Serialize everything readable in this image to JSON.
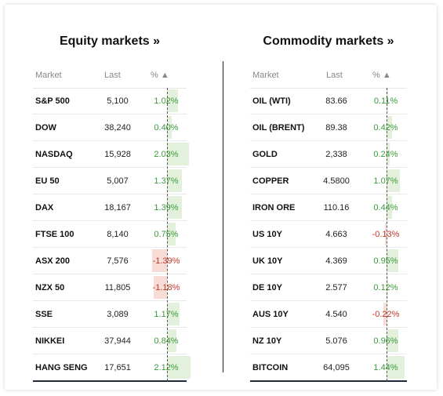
{
  "equity": {
    "title": "Equity markets »",
    "headers": {
      "market": "Market",
      "last": "Last",
      "pct": "% ▲"
    },
    "rows": [
      {
        "name": "S&P 500",
        "last": "5,100",
        "pct": "1.02%",
        "value": 1.02
      },
      {
        "name": "DOW",
        "last": "38,240",
        "pct": "0.40%",
        "value": 0.4
      },
      {
        "name": "NASDAQ",
        "last": "15,928",
        "pct": "2.03%",
        "value": 2.03
      },
      {
        "name": "EU 50",
        "last": "5,007",
        "pct": "1.37%",
        "value": 1.37
      },
      {
        "name": "DAX",
        "last": "18,167",
        "pct": "1.39%",
        "value": 1.39
      },
      {
        "name": "FTSE 100",
        "last": "8,140",
        "pct": "0.75%",
        "value": 0.75
      },
      {
        "name": "ASX 200",
        "last": "7,576",
        "pct": "-1.39%",
        "value": -1.39
      },
      {
        "name": "NZX 50",
        "last": "11,805",
        "pct": "-1.18%",
        "value": -1.18
      },
      {
        "name": "SSE",
        "last": "3,089",
        "pct": "1.17%",
        "value": 1.17
      },
      {
        "name": "NIKKEI",
        "last": "37,944",
        "pct": "0.84%",
        "value": 0.84
      },
      {
        "name": "HANG SENG",
        "last": "17,651",
        "pct": "2.12%",
        "value": 2.12
      }
    ]
  },
  "commodity": {
    "title": "Commodity markets »",
    "headers": {
      "market": "Market",
      "last": "Last",
      "pct": "% ▲"
    },
    "rows": [
      {
        "name": "OIL (WTI)",
        "last": "83.66",
        "pct": "0.11%",
        "value": 0.11
      },
      {
        "name": "OIL (BRENT)",
        "last": "89.38",
        "pct": "0.42%",
        "value": 0.42
      },
      {
        "name": "GOLD",
        "last": "2,338",
        "pct": "0.24%",
        "value": 0.24
      },
      {
        "name": "COPPER",
        "last": "4.5800",
        "pct": "1.07%",
        "value": 1.07
      },
      {
        "name": "IRON ORE",
        "last": "110.16",
        "pct": "0.44%",
        "value": 0.44
      },
      {
        "name": "US 10Y",
        "last": "4.663",
        "pct": "-0.13%",
        "value": -0.13
      },
      {
        "name": "UK 10Y",
        "last": "4.369",
        "pct": "0.95%",
        "value": 0.95
      },
      {
        "name": "DE 10Y",
        "last": "2.577",
        "pct": "0.12%",
        "value": 0.12
      },
      {
        "name": "AUS 10Y",
        "last": "4.540",
        "pct": "-0.22%",
        "value": -0.22
      },
      {
        "name": "NZ 10Y",
        "last": "5.076",
        "pct": "0.96%",
        "value": 0.96
      },
      {
        "name": "BITCOIN",
        "last": "64,095",
        "pct": "1.44%",
        "value": 1.44
      }
    ]
  },
  "colors": {
    "positive_text": "#3a9a3a",
    "negative_text": "#c0392b",
    "positive_bar": "#e3f1dc",
    "negative_bar": "#f8dcd6",
    "bottom_rule": "#1c2a3a"
  }
}
